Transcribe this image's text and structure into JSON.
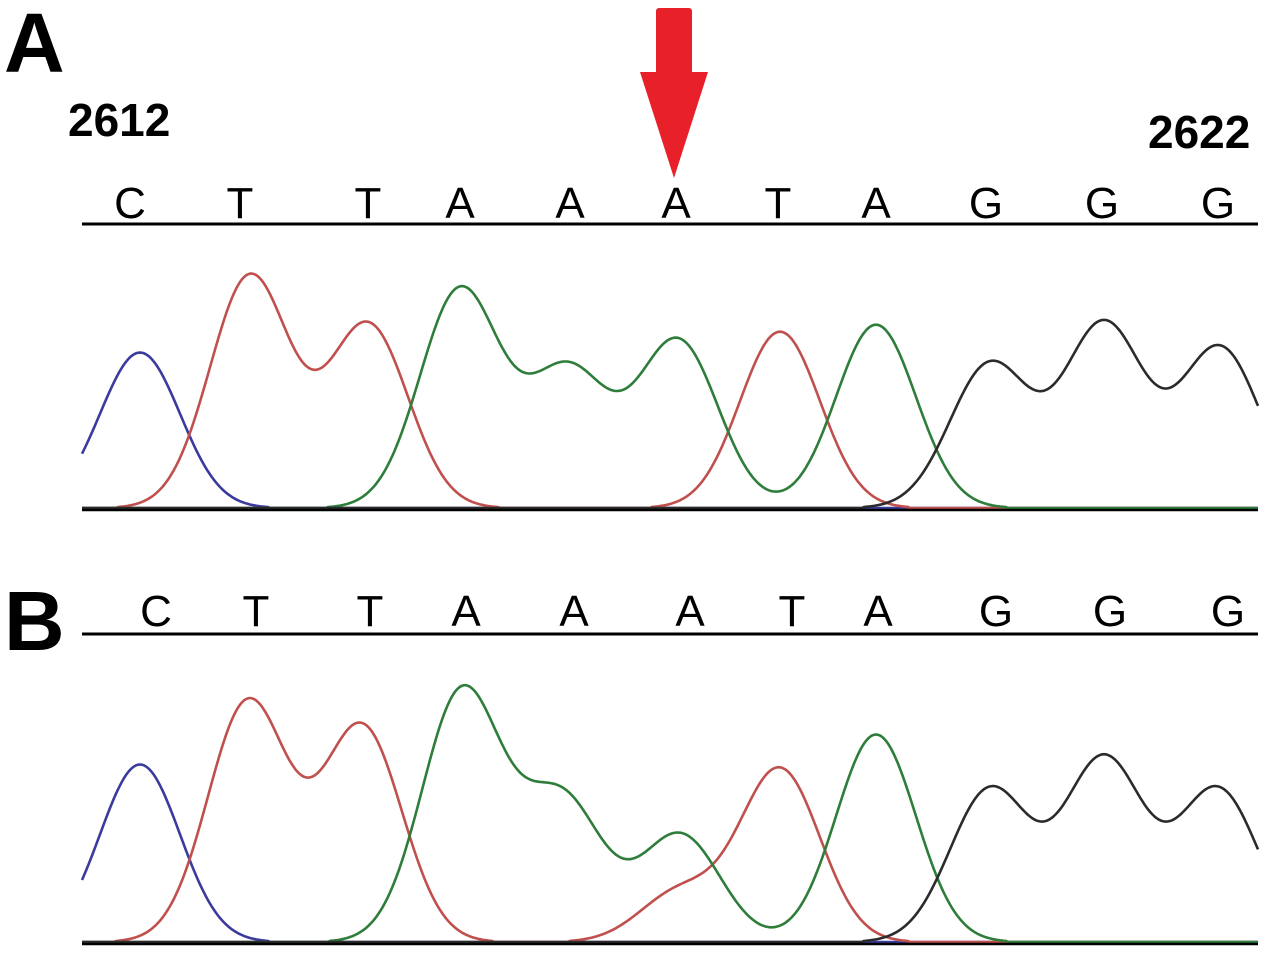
{
  "figure": {
    "panel_a": {
      "label": "A",
      "start_position": "2612",
      "end_position": "2622",
      "bases": [
        "C",
        "T",
        "T",
        "A",
        "A",
        "A",
        "T",
        "A",
        "G",
        "G",
        "G"
      ],
      "arrow": {
        "color": "#e8202a",
        "points_to_base_index": 5
      }
    },
    "panel_b": {
      "label": "B",
      "bases": [
        "C",
        "T",
        "T",
        "A",
        "A",
        "A",
        "T",
        "A",
        "G",
        "G",
        "G"
      ]
    },
    "trace_colors": {
      "C": "#3b3b9e",
      "T": "#c0504d",
      "A": "#2e7d3a",
      "G": "#2b2b2b"
    }
  },
  "chart_data": [
    {
      "type": "line",
      "title": "",
      "panel": "A",
      "bases": [
        "C",
        "T",
        "T",
        "A",
        "A",
        "A",
        "T",
        "A",
        "G",
        "G",
        "G"
      ],
      "ylim": [
        0,
        1
      ],
      "peaks": [
        {
          "base": "C",
          "index": 0,
          "height": 0.67
        },
        {
          "base": "T",
          "index": 1,
          "height": 1.0
        },
        {
          "base": "T",
          "index": 2,
          "height": 0.79
        },
        {
          "base": "A",
          "index": 3,
          "height": 0.94
        },
        {
          "base": "A",
          "index": 4,
          "height": 0.59
        },
        {
          "base": "A",
          "index": 5,
          "height": 0.72
        },
        {
          "base": "T",
          "index": 6,
          "height": 0.76
        },
        {
          "base": "A",
          "index": 7,
          "height": 0.79
        },
        {
          "base": "G",
          "index": 8,
          "height": 0.62
        },
        {
          "base": "G",
          "index": 9,
          "height": 0.79
        },
        {
          "base": "G",
          "index": 10,
          "height": 0.69
        }
      ],
      "secondary_peaks": []
    },
    {
      "type": "line",
      "title": "",
      "panel": "B",
      "bases": [
        "C",
        "T",
        "T",
        "A",
        "A",
        "A",
        "T",
        "A",
        "G",
        "G",
        "G"
      ],
      "ylim": [
        0,
        1
      ],
      "peaks": [
        {
          "base": "C",
          "index": 0,
          "height": 0.71
        },
        {
          "base": "T",
          "index": 1,
          "height": 0.96
        },
        {
          "base": "T",
          "index": 2,
          "height": 0.86
        },
        {
          "base": "A",
          "index": 3,
          "height": 1.0
        },
        {
          "base": "A",
          "index": 4,
          "height": 0.57
        },
        {
          "base": "A",
          "index": 5,
          "height": 0.43
        },
        {
          "base": "T",
          "index": 6,
          "height": 0.69
        },
        {
          "base": "A",
          "index": 7,
          "height": 0.83
        },
        {
          "base": "G",
          "index": 8,
          "height": 0.61
        },
        {
          "base": "G",
          "index": 9,
          "height": 0.73
        },
        {
          "base": "G",
          "index": 10,
          "height": 0.61
        }
      ],
      "secondary_peaks": [
        {
          "base": "T",
          "index": 5,
          "height": 0.2
        }
      ]
    }
  ]
}
